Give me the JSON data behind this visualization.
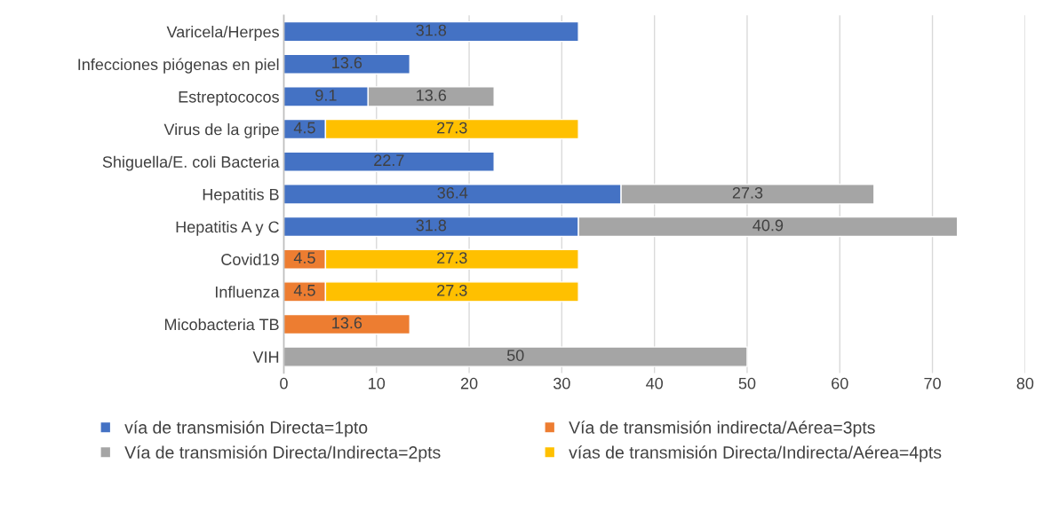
{
  "chart_data": {
    "type": "bar",
    "orientation": "horizontal",
    "stacked": true,
    "data_labels": true,
    "grid": "x",
    "legend": "bottom",
    "categories": [
      "Varicela/Herpes",
      "Infecciones piógenas en piel",
      "Estreptococos",
      "Virus de la gripe",
      "Shiguella/E. coli Bacteria",
      "Hepatitis B",
      "Hepatitis A y C",
      "Covid19",
      "Influenza",
      "Micobacteria TB",
      "VIH"
    ],
    "series": [
      {
        "name": "vía de transmisión Directa=1pto",
        "color": "#4472c4",
        "values": [
          31.8,
          13.6,
          9.1,
          4.5,
          22.7,
          36.4,
          31.8,
          null,
          null,
          null,
          null
        ]
      },
      {
        "name": "Vía de transmisión indirecta/Aérea=3pts",
        "color": "#ed7d31",
        "values": [
          null,
          null,
          null,
          null,
          null,
          null,
          null,
          4.5,
          4.5,
          13.6,
          null
        ]
      },
      {
        "name": "Vía de transmisión Directa/Indirecta=2pts",
        "color": "#a5a5a5",
        "values": [
          null,
          null,
          13.6,
          null,
          null,
          27.3,
          40.9,
          null,
          null,
          null,
          50
        ]
      },
      {
        "name": "vías de transmisión Directa/Indirecta/Aérea=4pts",
        "color": "#ffc000",
        "values": [
          null,
          null,
          null,
          27.3,
          null,
          null,
          null,
          27.3,
          27.3,
          null,
          null
        ]
      }
    ],
    "xlim": [
      0,
      80
    ],
    "xticks": [
      0,
      10,
      20,
      30,
      40,
      50,
      60,
      70,
      80
    ]
  }
}
